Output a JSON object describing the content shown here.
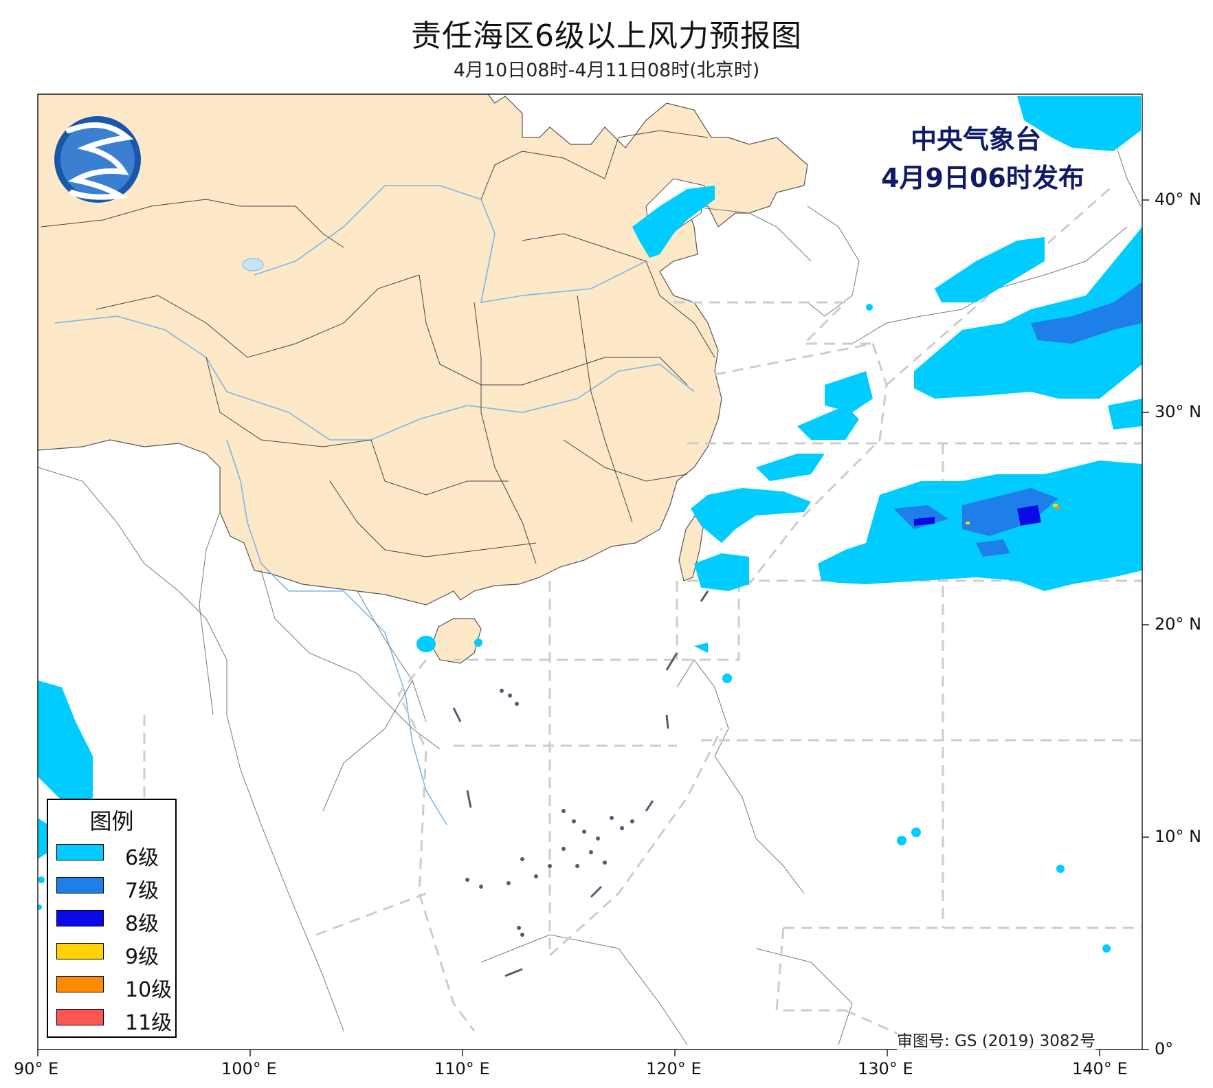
{
  "header": {
    "title": "责任海区6级以上风力预报图",
    "subtitle": "4月10日08时-4月11日08时(北京时)"
  },
  "agency": {
    "name": "中央气象台",
    "issued": "4月9日06时发布"
  },
  "review_number": "审图号: GS (2019) 3082号",
  "map": {
    "lon_range": [
      90,
      142
    ],
    "lat_range": [
      0,
      45
    ],
    "x_ticks": [
      {
        "lon": 90,
        "label": "90° E"
      },
      {
        "lon": 100,
        "label": "100° E"
      },
      {
        "lon": 110,
        "label": "110° E"
      },
      {
        "lon": 120,
        "label": "120° E"
      },
      {
        "lon": 130,
        "label": "130° E"
      },
      {
        "lon": 140,
        "label": "140° E"
      }
    ],
    "y_ticks": [
      {
        "lat": 0,
        "label": "0°"
      },
      {
        "lat": 10,
        "label": "10° N"
      },
      {
        "lat": 20,
        "label": "20° N"
      },
      {
        "lat": 30,
        "label": "30° N"
      },
      {
        "lat": 40,
        "label": "40° N"
      }
    ]
  },
  "legend": {
    "title": "图例",
    "items": [
      {
        "label": "6级",
        "color": "#00ccff"
      },
      {
        "label": "7级",
        "color": "#1e7fe8"
      },
      {
        "label": "8级",
        "color": "#0a0ae6"
      },
      {
        "label": "9级",
        "color": "#ffd200"
      },
      {
        "label": "10级",
        "color": "#ff8c00"
      },
      {
        "label": "11级",
        "color": "#ff5555"
      }
    ]
  },
  "colors": {
    "land_china": "#fde8c8",
    "sea_area_boundary": "#cccccc",
    "logo": "#1a57a8"
  }
}
